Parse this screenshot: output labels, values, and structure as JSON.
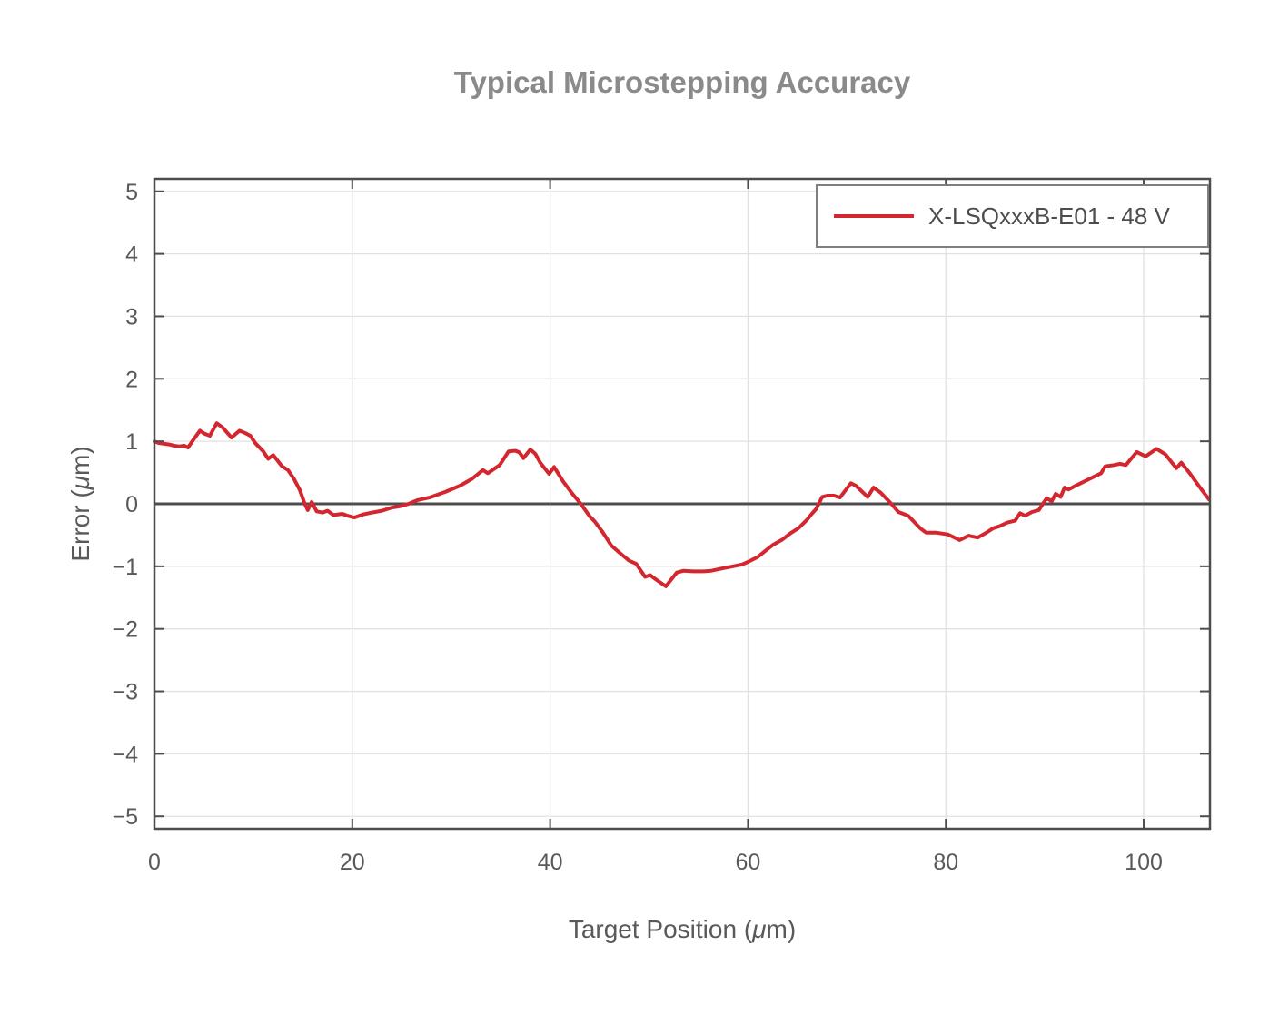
{
  "title": "Typical Microstepping Accuracy",
  "chart_data": {
    "type": "line",
    "title": "Typical Microstepping Accuracy",
    "xlabel": "Target Position (μm)",
    "ylabel": "Error (μm)",
    "xlim": [
      0,
      106.7
    ],
    "ylim": [
      -5.2,
      5.2
    ],
    "xticks": [
      0,
      20,
      40,
      60,
      80,
      100
    ],
    "xticklabels": [
      "0",
      "20",
      "40",
      "60",
      "80",
      "100"
    ],
    "yticks": [
      -5,
      -4,
      -3,
      -2,
      -1,
      0,
      1,
      2,
      3,
      4,
      5
    ],
    "yticklabels": [
      "−5",
      "−4",
      "−3",
      "−2",
      "−1",
      "0",
      "1",
      "2",
      "3",
      "4",
      "5"
    ],
    "grid": true,
    "zero_line": true,
    "legend": {
      "position": "top-right",
      "entries": [
        {
          "label": "X-LSQxxxB-E01 - 48 V",
          "color": "#d4262e"
        }
      ]
    },
    "series": [
      {
        "name": "X-LSQxxxB-E01 - 48 V",
        "color": "#d4262e",
        "points": [
          [
            0,
            1.0
          ],
          [
            0.5,
            0.97
          ],
          [
            1,
            0.96
          ],
          [
            1.5,
            0.95
          ],
          [
            2,
            0.93
          ],
          [
            2.5,
            0.92
          ],
          [
            3,
            0.93
          ],
          [
            3.4,
            0.9
          ],
          [
            4,
            1.04
          ],
          [
            4.6,
            1.17
          ],
          [
            5.1,
            1.12
          ],
          [
            5.6,
            1.09
          ],
          [
            6.3,
            1.29
          ],
          [
            6.9,
            1.22
          ],
          [
            7.4,
            1.13
          ],
          [
            7.8,
            1.06
          ],
          [
            8.6,
            1.17
          ],
          [
            9.2,
            1.13
          ],
          [
            9.7,
            1.09
          ],
          [
            10.2,
            0.97
          ],
          [
            11,
            0.84
          ],
          [
            11.5,
            0.72
          ],
          [
            12,
            0.78
          ],
          [
            12.9,
            0.6
          ],
          [
            13.5,
            0.54
          ],
          [
            14.1,
            0.4
          ],
          [
            14.7,
            0.22
          ],
          [
            15.2,
            0.0
          ],
          [
            15.5,
            -0.1
          ],
          [
            15.9,
            0.03
          ],
          [
            16.4,
            -0.12
          ],
          [
            17,
            -0.14
          ],
          [
            17.5,
            -0.11
          ],
          [
            18.1,
            -0.18
          ],
          [
            19,
            -0.16
          ],
          [
            19.5,
            -0.19
          ],
          [
            20.2,
            -0.22
          ],
          [
            21.1,
            -0.17
          ],
          [
            22,
            -0.14
          ],
          [
            23,
            -0.11
          ],
          [
            24,
            -0.06
          ],
          [
            24.8,
            -0.04
          ],
          [
            25.7,
            0.0
          ],
          [
            26.6,
            0.06
          ],
          [
            27.8,
            0.1
          ],
          [
            29.4,
            0.19
          ],
          [
            30.9,
            0.29
          ],
          [
            32.1,
            0.4
          ],
          [
            33.2,
            0.54
          ],
          [
            33.7,
            0.49
          ],
          [
            34.9,
            0.62
          ],
          [
            35.8,
            0.84
          ],
          [
            36.5,
            0.85
          ],
          [
            36.9,
            0.82
          ],
          [
            37.3,
            0.73
          ],
          [
            38,
            0.87
          ],
          [
            38.5,
            0.8
          ],
          [
            39,
            0.66
          ],
          [
            39.9,
            0.48
          ],
          [
            40.4,
            0.59
          ],
          [
            41.3,
            0.36
          ],
          [
            42.2,
            0.17
          ],
          [
            43.1,
            0.0
          ],
          [
            44,
            -0.2
          ],
          [
            44.5,
            -0.28
          ],
          [
            45.3,
            -0.45
          ],
          [
            46.2,
            -0.67
          ],
          [
            47.3,
            -0.82
          ],
          [
            48,
            -0.91
          ],
          [
            48.7,
            -0.96
          ],
          [
            49.6,
            -1.17
          ],
          [
            50.1,
            -1.14
          ],
          [
            50.6,
            -1.2
          ],
          [
            51.7,
            -1.32
          ],
          [
            52.8,
            -1.1
          ],
          [
            53.5,
            -1.07
          ],
          [
            54.5,
            -1.08
          ],
          [
            55.5,
            -1.08
          ],
          [
            56.3,
            -1.07
          ],
          [
            57.5,
            -1.03
          ],
          [
            58.5,
            -1.0
          ],
          [
            59.4,
            -0.97
          ],
          [
            60,
            -0.93
          ],
          [
            61,
            -0.85
          ],
          [
            61.7,
            -0.76
          ],
          [
            62.5,
            -0.66
          ],
          [
            63.5,
            -0.57
          ],
          [
            64.3,
            -0.47
          ],
          [
            65.1,
            -0.39
          ],
          [
            66,
            -0.25
          ],
          [
            66.4,
            -0.17
          ],
          [
            66.9,
            -0.08
          ],
          [
            67.5,
            0.11
          ],
          [
            68,
            0.13
          ],
          [
            68.7,
            0.13
          ],
          [
            69.3,
            0.1
          ],
          [
            70.4,
            0.33
          ],
          [
            70.9,
            0.29
          ],
          [
            72.1,
            0.11
          ],
          [
            72.7,
            0.26
          ],
          [
            73.4,
            0.18
          ],
          [
            74.5,
            0.0
          ],
          [
            75.2,
            -0.13
          ],
          [
            76.2,
            -0.19
          ],
          [
            77.4,
            -0.39
          ],
          [
            78,
            -0.46
          ],
          [
            79,
            -0.46
          ],
          [
            80.2,
            -0.49
          ],
          [
            81.4,
            -0.58
          ],
          [
            82.3,
            -0.51
          ],
          [
            83.2,
            -0.54
          ],
          [
            84,
            -0.47
          ],
          [
            84.8,
            -0.39
          ],
          [
            85.4,
            -0.36
          ],
          [
            86.2,
            -0.3
          ],
          [
            87,
            -0.27
          ],
          [
            87.5,
            -0.15
          ],
          [
            88,
            -0.19
          ],
          [
            88.7,
            -0.13
          ],
          [
            89.4,
            -0.1
          ],
          [
            89.8,
            0.0
          ],
          [
            90.2,
            0.09
          ],
          [
            90.7,
            0.04
          ],
          [
            91.1,
            0.16
          ],
          [
            91.6,
            0.11
          ],
          [
            92,
            0.26
          ],
          [
            92.4,
            0.23
          ],
          [
            93,
            0.28
          ],
          [
            93.9,
            0.35
          ],
          [
            94.8,
            0.42
          ],
          [
            95.7,
            0.49
          ],
          [
            96.1,
            0.6
          ],
          [
            97,
            0.62
          ],
          [
            97.6,
            0.64
          ],
          [
            98.2,
            0.62
          ],
          [
            99.3,
            0.83
          ],
          [
            100.2,
            0.76
          ],
          [
            101.3,
            0.88
          ],
          [
            102.2,
            0.79
          ],
          [
            103.3,
            0.57
          ],
          [
            103.8,
            0.66
          ],
          [
            104.7,
            0.48
          ],
          [
            105.6,
            0.28
          ],
          [
            106.6,
            0.07
          ]
        ]
      }
    ]
  },
  "colors": {
    "line_red": "#d4262e",
    "spine": "#4d4d4d",
    "grid": "#e1e1e1",
    "tick_label": "#595959",
    "title": "#8a8a8a",
    "legend_border": "#7f7f7f",
    "background": "#ffffff"
  }
}
